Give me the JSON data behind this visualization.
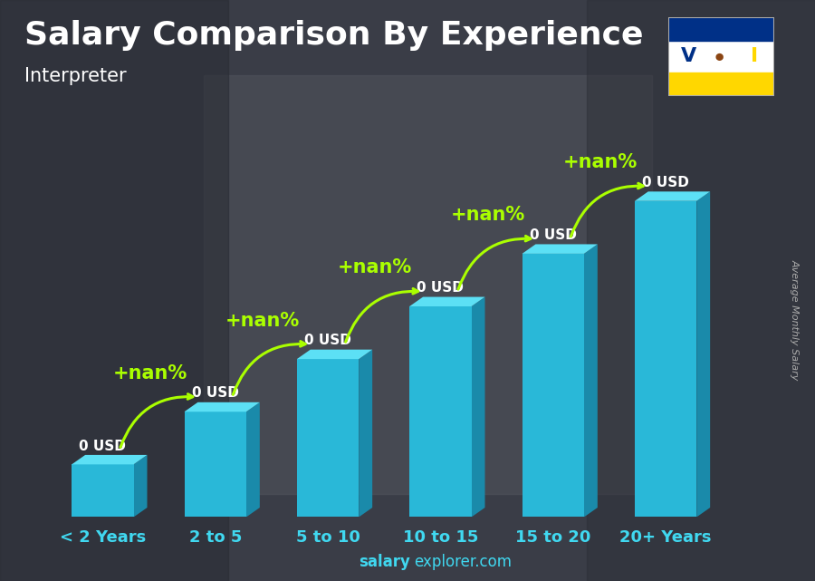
{
  "title": "Salary Comparison By Experience",
  "subtitle": "Interpreter",
  "categories": [
    "< 2 Years",
    "2 to 5",
    "5 to 10",
    "10 to 15",
    "15 to 20",
    "20+ Years"
  ],
  "bar_color_front": "#29b8d8",
  "bar_color_top": "#5ce0f5",
  "bar_color_side": "#1a8aaa",
  "bar_labels": [
    "0 USD",
    "0 USD",
    "0 USD",
    "0 USD",
    "0 USD",
    "0 USD"
  ],
  "change_labels": [
    "+nan%",
    "+nan%",
    "+nan%",
    "+nan%",
    "+nan%"
  ],
  "ylabel": "Average Monthly Salary",
  "footer_bold": "salary",
  "footer_normal": "explorer.com",
  "title_fontsize": 26,
  "subtitle_fontsize": 15,
  "tick_fontsize": 13,
  "change_fontsize": 15,
  "bar_label_fontsize": 11,
  "title_color": "#ffffff",
  "subtitle_color": "#ffffff",
  "bar_label_color": "#ffffff",
  "tick_color": "#40d8f0",
  "change_color": "#aaff00",
  "footer_color": "#40d8f0",
  "ylabel_color": "#aaaaaa",
  "bg_color": "#3c404a",
  "bar_heights": [
    1,
    2,
    3,
    4,
    5,
    6
  ],
  "ylim_max": 7.5
}
